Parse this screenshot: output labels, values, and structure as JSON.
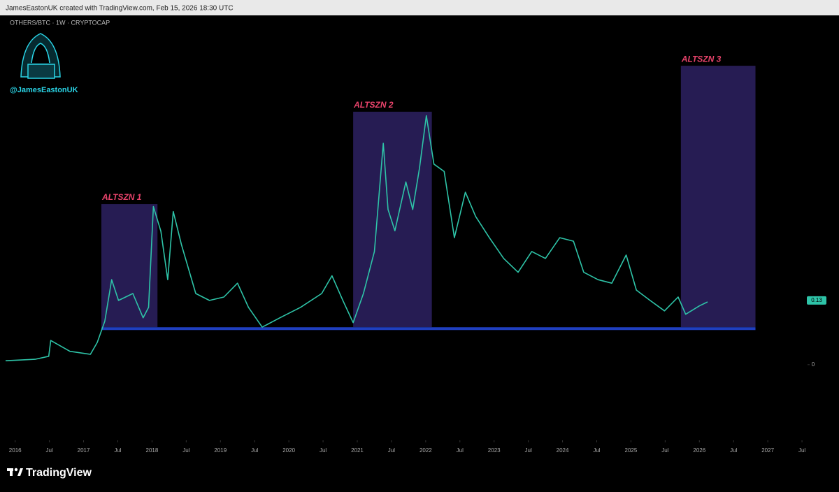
{
  "header": "JamesEastonUK created with TradingView.com, Feb 15, 2026 18:30 UTC",
  "symbol": "OTHERS/BTC · 1W · CRYPTOCAP",
  "handle": "@JamesEastonUK",
  "brand": "TradingView",
  "chart_data": {
    "type": "line",
    "x": [
      2015.86,
      2016.29,
      2016.49,
      2016.52,
      2016.8,
      2017.1,
      2017.2,
      2017.31,
      2017.41,
      2017.51,
      2017.72,
      2017.87,
      2017.95,
      2018.02,
      2018.13,
      2018.23,
      2018.31,
      2018.43,
      2018.64,
      2018.84,
      2019.05,
      2019.25,
      2019.41,
      2019.61,
      2019.87,
      2020.17,
      2020.48,
      2020.63,
      2020.79,
      2020.94,
      2021.09,
      2021.25,
      2021.38,
      2021.45,
      2021.55,
      2021.71,
      2021.81,
      2021.91,
      2022.01,
      2022.12,
      2022.27,
      2022.42,
      2022.58,
      2022.73,
      2022.93,
      2023.14,
      2023.35,
      2023.55,
      2023.75,
      2023.96,
      2024.16,
      2024.31,
      2024.52,
      2024.72,
      2024.93,
      2025.08,
      2025.28,
      2025.49,
      2025.69,
      2025.8,
      2026.0,
      2026.12
    ],
    "series": [
      {
        "name": "OTHERS/BTC",
        "color": "#2ec4a8",
        "values": [
          0.008,
          0.011,
          0.017,
          0.049,
          0.027,
          0.021,
          0.045,
          0.088,
          0.172,
          0.13,
          0.144,
          0.095,
          0.116,
          0.32,
          0.27,
          0.172,
          0.31,
          0.243,
          0.144,
          0.13,
          0.137,
          0.165,
          0.116,
          0.076,
          0.095,
          0.116,
          0.144,
          0.18,
          0.13,
          0.085,
          0.144,
          0.229,
          0.448,
          0.314,
          0.271,
          0.37,
          0.314,
          0.398,
          0.504,
          0.406,
          0.391,
          0.257,
          0.349,
          0.3,
          0.257,
          0.215,
          0.187,
          0.229,
          0.215,
          0.257,
          0.25,
          0.187,
          0.172,
          0.165,
          0.222,
          0.151,
          0.13,
          0.109,
          0.137,
          0.102,
          0.119,
          0.127
        ]
      }
    ],
    "last_price": 0.13,
    "xlim": [
      2015.86,
      2027.53
    ],
    "ylim": [
      -0.153,
      0.707
    ],
    "yticks": [
      0
    ],
    "xticks": [
      {
        "value": 2016,
        "label": "2016"
      },
      {
        "value": 2016.5,
        "label": "Jul"
      },
      {
        "value": 2017,
        "label": "2017"
      },
      {
        "value": 2017.5,
        "label": "Jul"
      },
      {
        "value": 2018,
        "label": "2018"
      },
      {
        "value": 2018.5,
        "label": "Jul"
      },
      {
        "value": 2019,
        "label": "2019"
      },
      {
        "value": 2019.5,
        "label": "Jul"
      },
      {
        "value": 2020,
        "label": "2020"
      },
      {
        "value": 2020.5,
        "label": "Jul"
      },
      {
        "value": 2021,
        "label": "2021"
      },
      {
        "value": 2021.5,
        "label": "Jul"
      },
      {
        "value": 2022,
        "label": "2022"
      },
      {
        "value": 2022.5,
        "label": "Jul"
      },
      {
        "value": 2023,
        "label": "2023"
      },
      {
        "value": 2023.5,
        "label": "Jul"
      },
      {
        "value": 2024,
        "label": "2024"
      },
      {
        "value": 2024.5,
        "label": "Jul"
      },
      {
        "value": 2025,
        "label": "2025"
      },
      {
        "value": 2025.5,
        "label": "Jul"
      },
      {
        "value": 2026,
        "label": "2026"
      },
      {
        "value": 2026.5,
        "label": "Jul"
      },
      {
        "value": 2027,
        "label": "2027"
      },
      {
        "value": 2027.5,
        "label": "Jul"
      }
    ],
    "annotations": [
      {
        "text": "ALTSZN 1",
        "x": [
          2017.26,
          2018.08
        ],
        "y": [
          0.076,
          0.325
        ]
      },
      {
        "text": "ALTSZN 2",
        "x": [
          2020.94,
          2022.09
        ],
        "y": [
          0.076,
          0.512
        ]
      },
      {
        "text": "ALTSZN 3",
        "x": [
          2025.73,
          2026.82
        ],
        "y": [
          0.076,
          0.605
        ]
      }
    ],
    "support": {
      "value": 0.073,
      "x": [
        2017.26,
        2026.82
      ],
      "color": "#1f3fbf"
    }
  }
}
